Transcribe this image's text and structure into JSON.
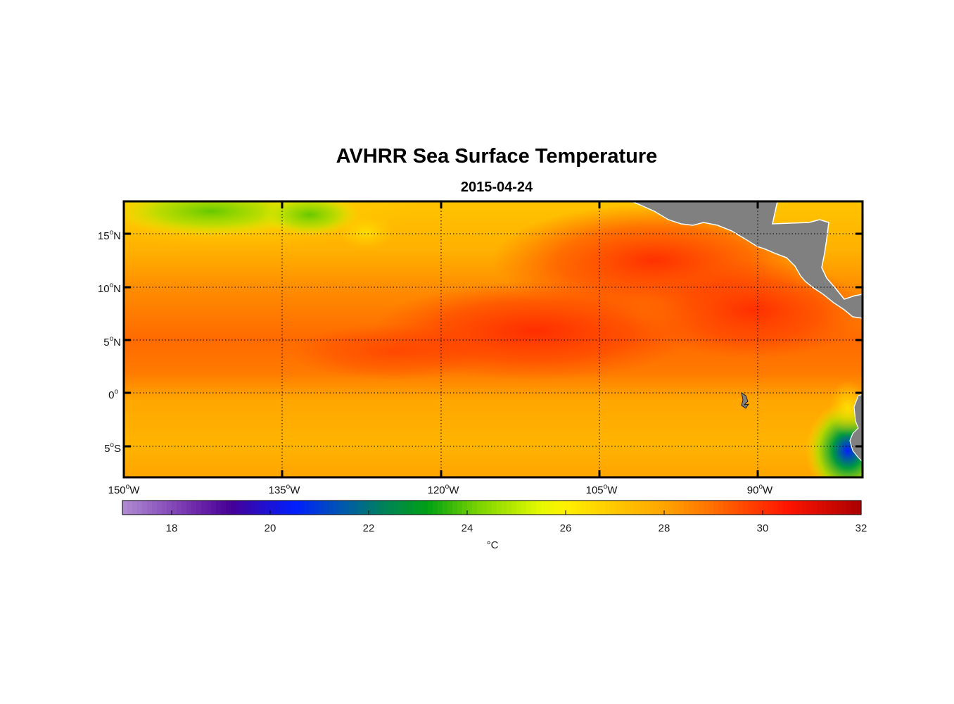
{
  "figure": {
    "title": "AVHRR Sea Surface Temperature",
    "date": "2015-04-24"
  },
  "map": {
    "lon_range": [
      -150,
      -80
    ],
    "lat_range": [
      -8,
      18
    ],
    "lon_ticks": [
      {
        "deg": "150",
        "hemi": "W"
      },
      {
        "deg": "135",
        "hemi": "W"
      },
      {
        "deg": "120",
        "hemi": "W"
      },
      {
        "deg": "105",
        "hemi": "W"
      },
      {
        "deg": "90",
        "hemi": "W"
      }
    ],
    "lat_ticks": [
      {
        "deg": "15",
        "hemi": "N"
      },
      {
        "deg": "10",
        "hemi": "N"
      },
      {
        "deg": "5",
        "hemi": "N"
      },
      {
        "deg": "0",
        "hemi": ""
      },
      {
        "deg": "5",
        "hemi": "S"
      }
    ],
    "colors": {
      "land": "#808080",
      "frame": "#000000"
    }
  },
  "colorbar": {
    "range": [
      17,
      32
    ],
    "ticks": [
      "18",
      "20",
      "22",
      "24",
      "26",
      "28",
      "30",
      "32"
    ],
    "unit": "°C"
  }
}
